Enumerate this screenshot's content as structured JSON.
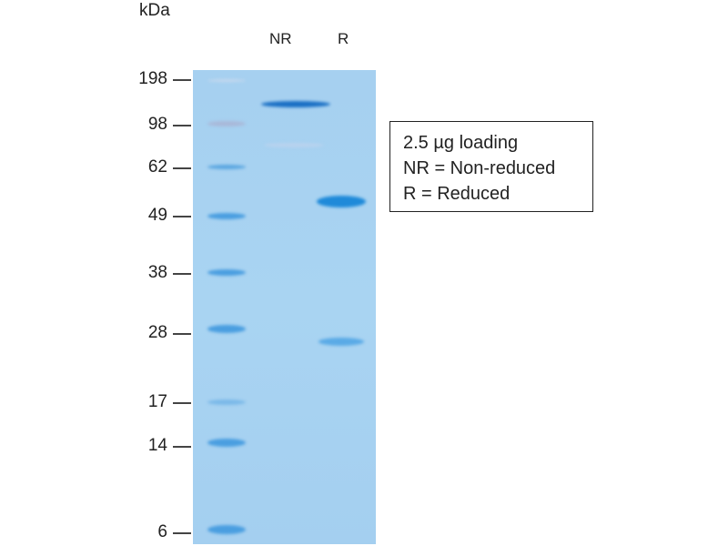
{
  "axis_unit": "kDa",
  "lanes": [
    "NR",
    "R"
  ],
  "markers": [
    "198",
    "98",
    "62",
    "49",
    "38",
    "28",
    "17",
    "14",
    "6"
  ],
  "legend": {
    "line1": "2.5 µg loading",
    "line2": "NR = Non-reduced",
    "line3": "R = Reduced"
  },
  "colors": {
    "gel": "#a9d3f0",
    "band": "#1f86d8"
  }
}
